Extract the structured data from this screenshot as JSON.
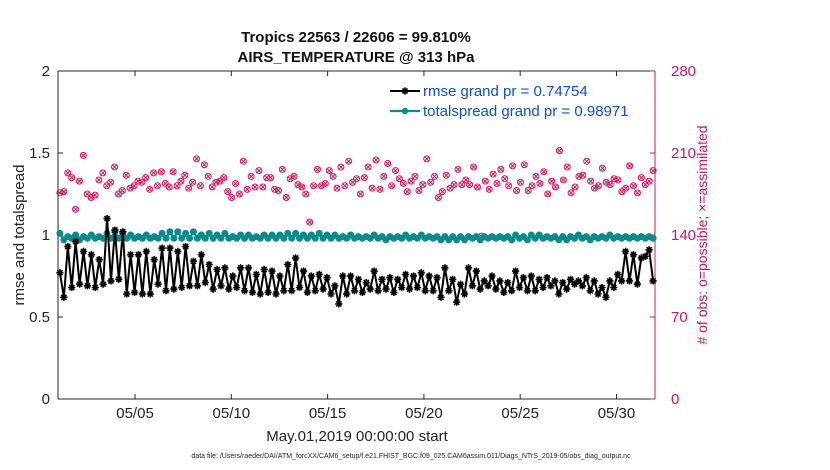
{
  "chart_data": {
    "type": "line",
    "title": "Tropics 22563 / 22606 = 99.810%",
    "subtitle": "AIRS_TEMPERATURE @ 313 hPa",
    "xlabel": "May.01,2019 00:00:00 start",
    "ylabel": "rmse and totalspread",
    "ylabel_right": "# of obs: o=possible; ×=assimilated",
    "xlim": [
      1,
      32
    ],
    "ylim": [
      0,
      2
    ],
    "ylim_right": [
      0,
      280
    ],
    "xticks": [
      5,
      10,
      15,
      20,
      25,
      30
    ],
    "xtick_labels": [
      "05/05",
      "05/10",
      "05/15",
      "05/20",
      "05/25",
      "05/30"
    ],
    "yticks": [
      0,
      0.5,
      1,
      1.5,
      2
    ],
    "ytick_labels": [
      "0",
      "0.5",
      "1",
      "1.5",
      "2"
    ],
    "yticks_right": [
      0,
      70,
      140,
      210,
      280
    ],
    "ytick_labels_right": [
      "0",
      "70",
      "140",
      "210",
      "280"
    ],
    "legend_position": "top-right",
    "series": [
      {
        "name": "rmse grand pr = 0.74754",
        "color": "#000000",
        "marker": "asterisk",
        "values": [
          0.77,
          0.62,
          0.93,
          0.68,
          0.96,
          0.7,
          0.9,
          0.69,
          0.88,
          0.68,
          0.85,
          0.7,
          1.1,
          0.72,
          1.03,
          0.73,
          1.02,
          0.64,
          0.88,
          0.65,
          0.88,
          0.64,
          0.9,
          0.64,
          0.85,
          0.7,
          0.92,
          0.66,
          0.92,
          0.67,
          0.9,
          0.68,
          0.93,
          0.69,
          0.84,
          0.69,
          0.88,
          0.71,
          0.82,
          0.67,
          0.79,
          0.69,
          0.8,
          0.67,
          0.75,
          0.68,
          0.8,
          0.66,
          0.8,
          0.65,
          0.76,
          0.64,
          0.79,
          0.65,
          0.78,
          0.64,
          0.75,
          0.66,
          0.82,
          0.66,
          0.86,
          0.68,
          0.78,
          0.65,
          0.75,
          0.66,
          0.76,
          0.67,
          0.74,
          0.64,
          0.69,
          0.58,
          0.75,
          0.64,
          0.75,
          0.66,
          0.73,
          0.65,
          0.71,
          0.67,
          0.78,
          0.66,
          0.73,
          0.67,
          0.74,
          0.65,
          0.73,
          0.68,
          0.76,
          0.67,
          0.75,
          0.68,
          0.77,
          0.66,
          0.75,
          0.66,
          0.74,
          0.62,
          0.8,
          0.66,
          0.73,
          0.59,
          0.7,
          0.64,
          0.8,
          0.69,
          0.78,
          0.67,
          0.72,
          0.69,
          0.75,
          0.67,
          0.72,
          0.65,
          0.71,
          0.66,
          0.78,
          0.68,
          0.74,
          0.66,
          0.75,
          0.66,
          0.73,
          0.68,
          0.74,
          0.69,
          0.72,
          0.64,
          0.71,
          0.67,
          0.73,
          0.7,
          0.72,
          0.69,
          0.74,
          0.66,
          0.72,
          0.64,
          0.68,
          0.62,
          0.72,
          0.68,
          0.76,
          0.72,
          0.9,
          0.72,
          0.88,
          0.7,
          0.86,
          0.87,
          0.91,
          0.72
        ]
      },
      {
        "name": "totalspread grand pr = 0.98971",
        "color": "#0b8b8b",
        "marker": "dot",
        "values": [
          1.01,
          0.97,
          0.99,
          0.98,
          1.0,
          0.97,
          0.99,
          0.98,
          1.0,
          0.98,
          0.99,
          0.98,
          1.01,
          0.98,
          1.02,
          0.98,
          1.01,
          0.98,
          1.0,
          0.98,
          0.99,
          0.98,
          1.0,
          0.98,
          0.99,
          0.98,
          1.01,
          0.98,
          1.02,
          0.98,
          1.02,
          0.98,
          1.01,
          0.98,
          1.02,
          0.98,
          1.0,
          0.98,
          1.01,
          0.98,
          1.0,
          0.98,
          1.01,
          0.98,
          0.99,
          0.98,
          1.0,
          0.98,
          1.0,
          0.98,
          0.99,
          0.98,
          1.0,
          0.98,
          1.0,
          0.98,
          1.0,
          0.98,
          1.01,
          0.98,
          1.01,
          0.98,
          1.0,
          0.98,
          1.0,
          0.98,
          1.01,
          0.98,
          1.0,
          0.98,
          1.0,
          0.98,
          0.99,
          0.98,
          1.0,
          0.98,
          0.99,
          0.98,
          0.99,
          0.98,
          1.0,
          0.98,
          0.99,
          0.97,
          0.99,
          0.98,
          0.99,
          0.98,
          1.0,
          0.98,
          0.99,
          0.98,
          1.0,
          0.98,
          0.99,
          0.98,
          0.99,
          0.97,
          0.99,
          0.97,
          0.99,
          0.97,
          0.99,
          0.97,
          0.99,
          0.98,
          0.99,
          0.97,
          0.99,
          0.98,
          0.99,
          0.98,
          0.99,
          0.98,
          0.99,
          0.97,
          1.0,
          0.98,
          0.99,
          0.97,
          1.0,
          0.98,
          1.0,
          0.98,
          0.99,
          0.98,
          0.99,
          0.97,
          0.99,
          0.97,
          0.99,
          0.98,
          1.0,
          0.98,
          0.99,
          0.97,
          0.99,
          0.98,
          0.99,
          0.98,
          1.0,
          0.98,
          0.99,
          0.98,
          0.99,
          0.98,
          0.99,
          0.98,
          0.99,
          0.98,
          0.99,
          0.98
        ]
      },
      {
        "name": "# of obs",
        "axis": "right",
        "color": "#d4145a",
        "marker": "circle-x",
        "values": [
          176,
          177,
          193,
          189,
          162,
          186,
          208,
          175,
          172,
          174,
          187,
          193,
          182,
          185,
          198,
          175,
          178,
          191,
          180,
          182,
          186,
          185,
          189,
          179,
          193,
          182,
          194,
          184,
          181,
          194,
          182,
          186,
          191,
          180,
          185,
          205,
          182,
          200,
          190,
          181,
          185,
          186,
          189,
          177,
          172,
          184,
          175,
          203,
          179,
          190,
          181,
          195,
          181,
          189,
          189,
          179,
          178,
          196,
          172,
          188,
          190,
          183,
          181,
          175,
          151,
          182,
          196,
          182,
          184,
          195,
          190,
          180,
          198,
          182,
          203,
          185,
          188,
          175,
          189,
          198,
          180,
          204,
          179,
          190,
          201,
          182,
          195,
          188,
          184,
          177,
          186,
          190,
          178,
          183,
          205,
          185,
          190,
          172,
          177,
          191,
          180,
          183,
          196,
          183,
          187,
          183,
          198,
          181,
          139,
          186,
          179,
          192,
          184,
          196,
          188,
          182,
          199,
          178,
          185,
          200,
          178,
          182,
          190,
          184,
          194,
          175,
          186,
          181,
          212,
          187,
          198,
          176,
          181,
          190,
          191,
          203,
          186,
          180,
          182,
          197,
          185,
          183,
          188,
          187,
          177,
          180,
          199,
          182,
          176,
          189,
          183,
          186,
          195
        ]
      }
    ]
  },
  "footer": {
    "data_file": "data file: /Users/raeder/DAI/ATM_forcXX/CAM6_setup/f.e21.FHIST_BGC.f09_025.CAM6assim.011/Diags_NTrS_2019-05/obs_diag_output.nc"
  }
}
